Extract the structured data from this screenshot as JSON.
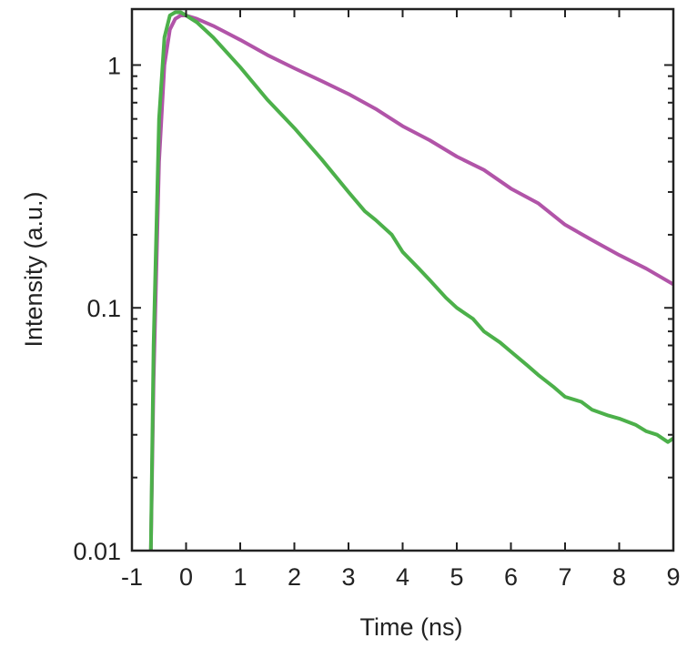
{
  "chart_data": {
    "type": "line",
    "xlabel": "Time (ns)",
    "ylabel": "Intensity (a.u.)",
    "xlim": [
      -1,
      9
    ],
    "ylim": [
      0.01,
      1.7
    ],
    "yscale": "log",
    "grid": false,
    "x_ticks": [
      -1,
      0,
      1,
      2,
      3,
      4,
      5,
      6,
      7,
      8,
      9
    ],
    "x_tick_labels": [
      "-1",
      "0",
      "1",
      "2",
      "3",
      "4",
      "5",
      "6",
      "7",
      "8",
      "9"
    ],
    "y_ticks": [
      0.01,
      0.1,
      1
    ],
    "y_tick_labels": [
      "0.01",
      "0.1",
      "1"
    ],
    "series": [
      {
        "color": "#b154a8",
        "x": [
          -0.65,
          -0.6,
          -0.5,
          -0.4,
          -0.3,
          -0.2,
          -0.1,
          0.0,
          0.2,
          0.5,
          1.0,
          1.5,
          2.0,
          2.5,
          3.0,
          3.5,
          4.0,
          4.5,
          5.0,
          5.5,
          6.0,
          6.5,
          7.0,
          7.5,
          8.0,
          8.5,
          9.0
        ],
        "y": [
          0.01,
          0.05,
          0.4,
          1.0,
          1.4,
          1.55,
          1.6,
          1.6,
          1.55,
          1.45,
          1.27,
          1.1,
          0.97,
          0.86,
          0.76,
          0.66,
          0.56,
          0.49,
          0.42,
          0.37,
          0.31,
          0.27,
          0.22,
          0.19,
          0.165,
          0.145,
          0.125
        ]
      },
      {
        "color": "#4cb04a",
        "x": [
          -0.65,
          -0.6,
          -0.5,
          -0.4,
          -0.3,
          -0.2,
          -0.1,
          0.0,
          0.2,
          0.5,
          1.0,
          1.5,
          2.0,
          2.5,
          3.0,
          3.3,
          3.5,
          3.8,
          4.0,
          4.3,
          4.5,
          4.8,
          5.0,
          5.3,
          5.5,
          5.8,
          6.0,
          6.3,
          6.5,
          6.8,
          7.0,
          7.3,
          7.5,
          7.8,
          8.0,
          8.3,
          8.5,
          8.7,
          8.9,
          9.0
        ],
        "y": [
          0.01,
          0.07,
          0.6,
          1.3,
          1.6,
          1.65,
          1.65,
          1.6,
          1.5,
          1.3,
          0.98,
          0.72,
          0.55,
          0.41,
          0.3,
          0.25,
          0.23,
          0.2,
          0.17,
          0.145,
          0.13,
          0.11,
          0.1,
          0.09,
          0.08,
          0.072,
          0.066,
          0.058,
          0.053,
          0.047,
          0.043,
          0.041,
          0.038,
          0.036,
          0.035,
          0.033,
          0.031,
          0.03,
          0.028,
          0.029
        ]
      }
    ]
  }
}
